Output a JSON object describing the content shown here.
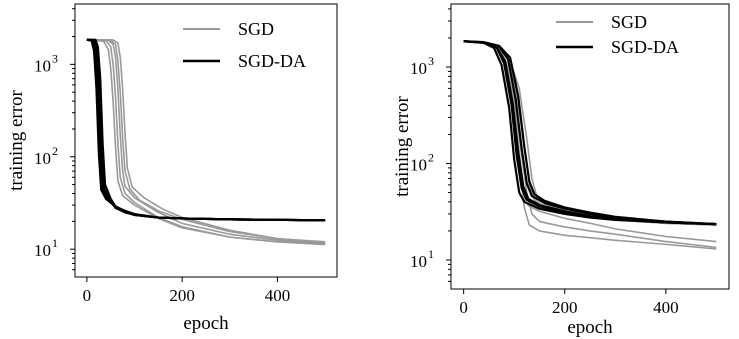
{
  "chart_data": [
    {
      "type": "line",
      "xlabel": "epoch",
      "ylabel": "training error",
      "yscale": "log",
      "xlim": [
        -25,
        525
      ],
      "ylim": [
        5,
        4500
      ],
      "xticks": [
        0,
        200,
        400
      ],
      "yticks": [
        10,
        100,
        1000
      ],
      "ytick_labels": [
        {
          "base": "10",
          "exp": "1"
        },
        {
          "base": "10",
          "exp": "2"
        },
        {
          "base": "10",
          "exp": "3"
        }
      ],
      "legend": {
        "location": "top-right",
        "entries": [
          "SGD",
          "SGD-DA"
        ]
      },
      "colors": {
        "SGD": "#999999",
        "SGD-DA": "#000000"
      },
      "series": [
        {
          "group": "SGD",
          "x": [
            0,
            45,
            55,
            60,
            65,
            70,
            75,
            80,
            100,
            150,
            200,
            300,
            400,
            500
          ],
          "y": [
            1850,
            1820,
            1650,
            1200,
            550,
            170,
            70,
            48,
            36,
            25,
            19,
            14.5,
            12.5,
            11.5
          ]
        },
        {
          "group": "SGD",
          "x": [
            0,
            40,
            50,
            55,
            60,
            65,
            70,
            80,
            100,
            150,
            200,
            300,
            400,
            500
          ],
          "y": [
            1850,
            1800,
            1550,
            1000,
            450,
            140,
            60,
            40,
            32,
            22,
            17.5,
            13.5,
            12,
            11.2
          ]
        },
        {
          "group": "SGD",
          "x": [
            0,
            50,
            60,
            65,
            70,
            75,
            80,
            90,
            110,
            150,
            200,
            300,
            400,
            500
          ],
          "y": [
            1850,
            1830,
            1650,
            1100,
            500,
            160,
            70,
            45,
            34,
            26,
            21,
            15.5,
            13,
            12
          ]
        },
        {
          "group": "SGD",
          "x": [
            0,
            35,
            45,
            50,
            55,
            60,
            65,
            75,
            100,
            150,
            200,
            300,
            400,
            500
          ],
          "y": [
            1850,
            1780,
            1450,
            900,
            400,
            130,
            55,
            38,
            30,
            21.5,
            17,
            13.5,
            12,
            11.3
          ]
        },
        {
          "group": "SGD",
          "x": [
            0,
            55,
            65,
            70,
            75,
            80,
            85,
            95,
            120,
            160,
            200,
            300,
            400,
            500
          ],
          "y": [
            1850,
            1840,
            1700,
            1200,
            550,
            180,
            75,
            47,
            36,
            27,
            22,
            16,
            13,
            11.8
          ]
        },
        {
          "group": "SGD-DA",
          "x": [
            0,
            10,
            15,
            20,
            25,
            30,
            40,
            60,
            80,
            100,
            150,
            200,
            300,
            400,
            500
          ],
          "y": [
            1850,
            1800,
            1400,
            550,
            110,
            44,
            35,
            29,
            26,
            24,
            22,
            21.5,
            21,
            20.8,
            20.5
          ]
        },
        {
          "group": "SGD-DA",
          "x": [
            0,
            12,
            17,
            22,
            27,
            32,
            45,
            60,
            80,
            100,
            150,
            200,
            300,
            400,
            500
          ],
          "y": [
            1850,
            1810,
            1450,
            600,
            120,
            46,
            34,
            28.5,
            25.5,
            23.5,
            22,
            21.5,
            21,
            20.8,
            20.5
          ]
        },
        {
          "group": "SGD-DA",
          "x": [
            0,
            14,
            19,
            24,
            29,
            34,
            45,
            60,
            80,
            100,
            150,
            200,
            300,
            400,
            500
          ],
          "y": [
            1850,
            1820,
            1500,
            650,
            130,
            48,
            35,
            29,
            25.5,
            23.5,
            22,
            21.5,
            21,
            20.8,
            20.5
          ]
        },
        {
          "group": "SGD-DA",
          "x": [
            0,
            16,
            21,
            26,
            31,
            36,
            48,
            60,
            80,
            100,
            150,
            200,
            300,
            400,
            500
          ],
          "y": [
            1850,
            1830,
            1500,
            600,
            120,
            45,
            34,
            28,
            25,
            23.5,
            22,
            21.5,
            21,
            20.8,
            20.5
          ]
        },
        {
          "group": "SGD-DA",
          "x": [
            0,
            18,
            23,
            28,
            33,
            38,
            50,
            60,
            80,
            100,
            150,
            200,
            300,
            400,
            500
          ],
          "y": [
            1850,
            1840,
            1550,
            700,
            140,
            50,
            35,
            29,
            25.5,
            23.5,
            22,
            21.5,
            21,
            20.8,
            20.5
          ]
        }
      ]
    },
    {
      "type": "line",
      "xlabel": "epoch",
      "ylabel": "training error",
      "yscale": "log",
      "xlim": [
        -25,
        525
      ],
      "ylim": [
        5,
        4500
      ],
      "xticks": [
        0,
        200,
        400
      ],
      "yticks": [
        10,
        100,
        1000
      ],
      "ytick_labels": [
        {
          "base": "10",
          "exp": "1"
        },
        {
          "base": "10",
          "exp": "2"
        },
        {
          "base": "10",
          "exp": "3"
        }
      ],
      "legend": {
        "location": "top-right",
        "entries": [
          "SGD",
          "SGD-DA"
        ]
      },
      "colors": {
        "SGD": "#999999",
        "SGD-DA": "#000000"
      },
      "series": [
        {
          "group": "SGD",
          "x": [
            0,
            40,
            70,
            90,
            110,
            125,
            135,
            145,
            160,
            200,
            250,
            300,
            400,
            500
          ],
          "y": [
            1850,
            1800,
            1650,
            1250,
            600,
            180,
            70,
            45,
            38,
            32,
            28,
            26,
            24,
            23
          ]
        },
        {
          "group": "SGD",
          "x": [
            0,
            40,
            70,
            85,
            100,
            115,
            125,
            135,
            150,
            200,
            250,
            300,
            400,
            500
          ],
          "y": [
            1850,
            1790,
            1600,
            1100,
            450,
            120,
            50,
            30,
            25,
            22,
            20,
            18.5,
            15.5,
            13.5
          ]
        },
        {
          "group": "SGD",
          "x": [
            0,
            40,
            70,
            85,
            100,
            112,
            120,
            130,
            150,
            200,
            250,
            300,
            400,
            500
          ],
          "y": [
            1850,
            1780,
            1550,
            1000,
            380,
            90,
            35,
            23,
            20,
            18,
            17,
            16,
            14.5,
            13
          ]
        },
        {
          "group": "SGD",
          "x": [
            0,
            40,
            70,
            85,
            100,
            115,
            122,
            130,
            150,
            200,
            250,
            300,
            400,
            500
          ],
          "y": [
            1850,
            1780,
            1500,
            950,
            350,
            80,
            40,
            36,
            32,
            27,
            24,
            21,
            17.5,
            15.5
          ]
        },
        {
          "group": "SGD",
          "x": [
            0,
            40,
            70,
            90,
            105,
            120,
            130,
            140,
            160,
            200,
            250,
            300,
            400,
            500
          ],
          "y": [
            1850,
            1800,
            1620,
            1200,
            520,
            150,
            60,
            42,
            36,
            31,
            28,
            26,
            24,
            23
          ]
        },
        {
          "group": "SGD-DA",
          "x": [
            0,
            40,
            65,
            80,
            95,
            105,
            115,
            125,
            150,
            200,
            250,
            300,
            400,
            500
          ],
          "y": [
            1850,
            1790,
            1600,
            1100,
            400,
            120,
            55,
            42,
            36,
            31,
            28,
            26.5,
            24.5,
            23.5
          ]
        },
        {
          "group": "SGD-DA",
          "x": [
            0,
            40,
            65,
            82,
            97,
            108,
            118,
            128,
            150,
            200,
            250,
            300,
            400,
            500
          ],
          "y": [
            1850,
            1790,
            1620,
            1150,
            420,
            130,
            58,
            43,
            37,
            32,
            28.5,
            26.5,
            24.5,
            23.5
          ]
        },
        {
          "group": "SGD-DA",
          "x": [
            0,
            40,
            70,
            88,
            103,
            115,
            125,
            135,
            160,
            200,
            250,
            300,
            400,
            500
          ],
          "y": [
            1850,
            1800,
            1640,
            1200,
            460,
            140,
            62,
            46,
            39,
            34,
            30,
            27.5,
            25,
            23.5
          ]
        },
        {
          "group": "SGD-DA",
          "x": [
            0,
            40,
            70,
            92,
            108,
            120,
            130,
            140,
            160,
            200,
            250,
            300,
            400,
            500
          ],
          "y": [
            1850,
            1810,
            1660,
            1250,
            500,
            150,
            65,
            48,
            41,
            35,
            31,
            28,
            25,
            23.5
          ]
        },
        {
          "group": "SGD-DA",
          "x": [
            0,
            40,
            60,
            75,
            90,
            100,
            110,
            120,
            150,
            200,
            250,
            300,
            400,
            500
          ],
          "y": [
            1850,
            1780,
            1580,
            1050,
            380,
            110,
            50,
            40,
            34,
            30,
            27.5,
            26,
            24.5,
            23.5
          ]
        }
      ]
    }
  ]
}
